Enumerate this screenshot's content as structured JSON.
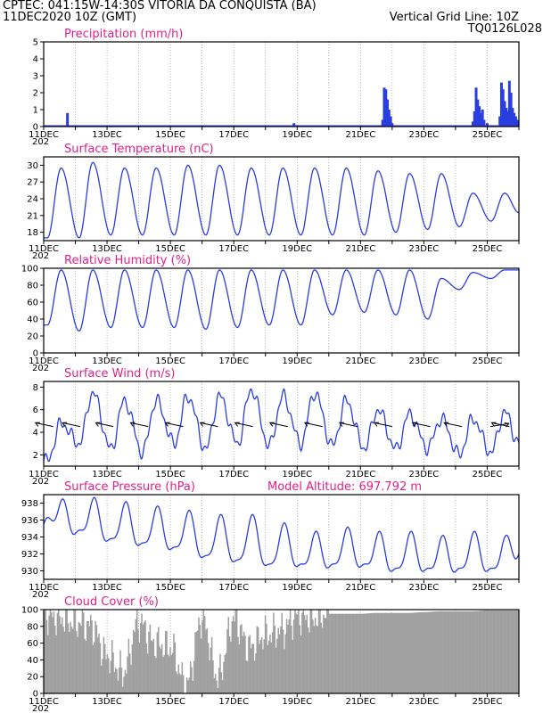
{
  "header": {
    "line1": "CPTEC:   041:15W-14:30S  VITORIA DA CONQUISTA (BA)",
    "line2_left": "11DEC2020 10Z (GMT)",
    "line2_right": "Vertical Grid Line: 10Z",
    "line3_right": "TQ0126L028"
  },
  "colors": {
    "header": "#e07020",
    "title": "#e0208a",
    "series": "#2a3ee0",
    "cloud": "#a0a0a0",
    "grid": "#888888"
  },
  "x_labels": [
    "11DEC",
    "13DEC",
    "15DEC",
    "17DEC",
    "19DEC",
    "21DEC",
    "23DEC",
    "25DEC"
  ],
  "x_stub": "202",
  "chart_data": [
    {
      "id": "precip",
      "type": "bar",
      "title": "Precipitation (mm/h)",
      "ylim": [
        0,
        5
      ],
      "yticks": [
        0,
        1,
        2,
        3,
        4,
        5
      ],
      "x_unit": "days since 11DEC 10Z",
      "x": [
        0.75,
        7.9,
        10.7,
        10.75,
        10.8,
        10.85,
        10.9,
        10.95,
        11.0,
        13.55,
        13.6,
        13.65,
        13.7,
        13.75,
        13.8,
        13.85,
        13.9,
        14.0,
        14.4,
        14.45,
        14.5,
        14.55,
        14.6,
        14.65,
        14.7,
        14.75,
        14.8,
        14.85,
        14.9,
        14.95
      ],
      "values": [
        0.8,
        0.2,
        0.4,
        2.3,
        2.2,
        1.6,
        1.0,
        0.6,
        0.2,
        0.3,
        0.9,
        2.3,
        1.6,
        1.2,
        0.8,
        1.0,
        0.4,
        0.2,
        0.6,
        2.6,
        2.2,
        1.5,
        1.1,
        0.9,
        2.7,
        2.0,
        1.1,
        0.8,
        0.6,
        0.4
      ]
    },
    {
      "id": "temp",
      "type": "line",
      "title": "Surface Temperature (nC)",
      "ylim": [
        16.5,
        31.5
      ],
      "yticks": [
        18,
        21,
        24,
        27,
        30
      ],
      "daily_min": [
        17.0,
        17.0,
        17.5,
        17.5,
        17.5,
        17.5,
        17.5,
        17.5,
        17.5,
        17.5,
        17.5,
        18.0,
        18.5,
        19.0,
        20.0
      ],
      "daily_max": [
        29.5,
        30.5,
        29.5,
        29.5,
        30.0,
        30.0,
        29.5,
        29.5,
        29.5,
        29.5,
        29.0,
        28.5,
        28.5,
        25.0,
        25.0
      ],
      "end_value": 21.5
    },
    {
      "id": "rh",
      "type": "line",
      "title": "Relative Humidity (%)",
      "ylim": [
        0,
        100
      ],
      "yticks": [
        0,
        20,
        40,
        60,
        80,
        100
      ],
      "daily_min": [
        33,
        26,
        30,
        30,
        30,
        28,
        30,
        33,
        33,
        45,
        48,
        45,
        40,
        75,
        88
      ],
      "daily_max": [
        98,
        98,
        98,
        98,
        98,
        98,
        98,
        98,
        98,
        98,
        98,
        98,
        88,
        95,
        98
      ],
      "end_value": 98
    },
    {
      "id": "wind",
      "type": "line",
      "title": "Surface Wind (m/s)",
      "ylim": [
        1,
        8.5
      ],
      "yticks": [
        2,
        4,
        6,
        8
      ],
      "daily_min": [
        1.5,
        3.0,
        2.5,
        2.2,
        3.0,
        2.5,
        3.0,
        2.8,
        3.0,
        2.8,
        2.6,
        2.5,
        2.6,
        2.0,
        2.2
      ],
      "daily_max": [
        4.8,
        7.5,
        6.8,
        6.8,
        7.2,
        7.2,
        7.8,
        7.2,
        7.5,
        6.8,
        6.0,
        5.6,
        5.2,
        5.2,
        5.8
      ],
      "end_value": 3.0,
      "arrows": [
        {
          "x": 0.3,
          "dir": "from-ne"
        },
        {
          "x": 1.15,
          "dir": "from-ne"
        },
        {
          "x": 2.2,
          "dir": "from-ne"
        },
        {
          "x": 3.3,
          "dir": "from-ne"
        },
        {
          "x": 4.4,
          "dir": "from-ne"
        },
        {
          "x": 5.5,
          "dir": "from-ne"
        },
        {
          "x": 6.6,
          "dir": "from-ne"
        },
        {
          "x": 7.7,
          "dir": "from-ne"
        },
        {
          "x": 8.8,
          "dir": "from-ne"
        },
        {
          "x": 9.9,
          "dir": "from-ne"
        },
        {
          "x": 11.0,
          "dir": "from-ne"
        },
        {
          "x": 12.2,
          "dir": "from-ne"
        },
        {
          "x": 13.2,
          "dir": "from-ne"
        },
        {
          "x": 14.1,
          "dir": "from-nw"
        },
        {
          "x": 14.7,
          "dir": "from-ne"
        }
      ]
    },
    {
      "id": "pres",
      "type": "line",
      "title": "Surface Pressure (hPa)",
      "subtitle": "Model Altitude: 697.792 m",
      "ylim": [
        929,
        939
      ],
      "yticks": [
        930,
        932,
        934,
        936,
        938
      ],
      "daily_min": [
        935.5,
        934.0,
        933.0,
        932.5,
        932.0,
        931.0,
        930.5,
        930.0,
        930.0,
        930.0,
        930.0,
        929.5,
        929.5,
        929.5,
        929.5
      ],
      "daily_max": [
        937.8,
        938.0,
        937.5,
        937.0,
        936.5,
        936.0,
        936.0,
        935.0,
        934.0,
        934.5,
        934.0,
        934.0,
        933.5,
        934.0,
        933.5
      ],
      "end_value": 932.0
    },
    {
      "id": "cloud",
      "type": "area",
      "title": "Cloud Cover (%)",
      "ylim": [
        0,
        100
      ],
      "yticks": [
        0,
        20,
        40,
        60,
        80,
        100
      ],
      "x_days": [
        0,
        0.5,
        1,
        1.5,
        2,
        2.5,
        3,
        3.5,
        4,
        4.5,
        5,
        5.5,
        6,
        6.5,
        7,
        7.5,
        8,
        8.5,
        9,
        9.5,
        10,
        10.5,
        11,
        11.5,
        12,
        12.5,
        13,
        13.5,
        14,
        14.5,
        15
      ],
      "values": [
        95,
        90,
        85,
        80,
        45,
        25,
        85,
        60,
        55,
        10,
        90,
        20,
        88,
        55,
        70,
        75,
        92,
        90,
        95,
        95,
        95,
        96,
        96,
        96,
        97,
        98,
        98,
        98,
        99,
        99,
        99
      ]
    }
  ]
}
